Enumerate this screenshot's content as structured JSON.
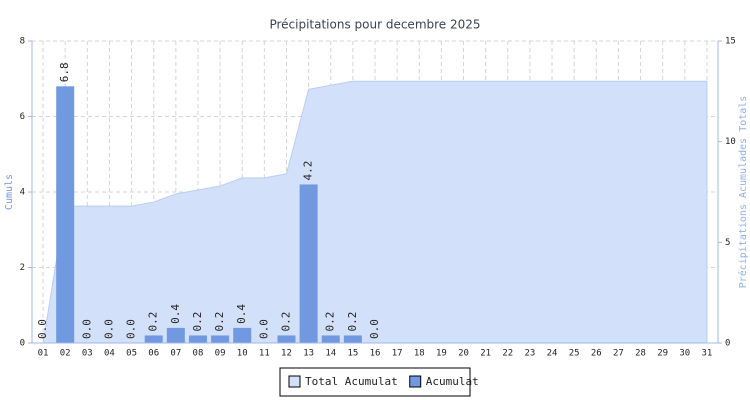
{
  "chart_data": {
    "type": "bar",
    "title": "Précipitations pour decembre 2025",
    "y_label": "Cumuls",
    "y2_label": "Précipitations Acumulades Totals",
    "categories": [
      "01",
      "02",
      "03",
      "04",
      "05",
      "06",
      "07",
      "08",
      "09",
      "10",
      "11",
      "12",
      "13",
      "14",
      "15",
      "16",
      "17",
      "18",
      "19",
      "20",
      "21",
      "22",
      "23",
      "24",
      "25",
      "26",
      "27",
      "28",
      "29",
      "30",
      "31"
    ],
    "series": [
      {
        "name": "Total Acumulat",
        "type": "area",
        "axis": "y2",
        "color": "#d3e0f9",
        "edge": "#b9cdf3",
        "values": [
          0,
          6.8,
          6.8,
          6.8,
          6.8,
          7.0,
          7.4,
          7.6,
          7.8,
          8.2,
          8.2,
          8.4,
          12.6,
          12.8,
          13.0,
          13.0,
          13.0,
          13.0,
          13.0,
          13.0,
          13.0,
          13.0,
          13.0,
          13.0,
          13.0,
          13.0,
          13.0,
          13.0,
          13.0,
          13.0,
          13.0
        ]
      },
      {
        "name": "Acumulat",
        "type": "bar",
        "color": "#7099e0",
        "values": [
          0,
          6.8,
          0,
          0,
          0,
          0.2,
          0.4,
          0.2,
          0.2,
          0.4,
          0,
          0.2,
          4.2,
          0.2,
          0.2,
          0,
          null,
          null,
          null,
          null,
          null,
          null,
          null,
          null,
          null,
          null,
          null,
          null,
          null,
          null,
          null
        ],
        "value_labels": [
          "0.0",
          "6.8",
          "0.0",
          "0.0",
          "0.0",
          "0.2",
          "0.4",
          "0.2",
          "0.2",
          "0.4",
          "0.0",
          "0.2",
          "4.2",
          "0.2",
          "0.2",
          "0.0",
          null,
          null,
          null,
          null,
          null,
          null,
          null,
          null,
          null,
          null,
          null,
          null,
          null,
          null,
          null
        ]
      }
    ],
    "ylim": [
      0,
      8
    ],
    "yticks": [
      0,
      2,
      4,
      6,
      8
    ],
    "y2lim": [
      0,
      15
    ],
    "y2ticks": [
      0,
      5,
      10,
      15
    ],
    "grid": true,
    "legend": "bottom"
  }
}
